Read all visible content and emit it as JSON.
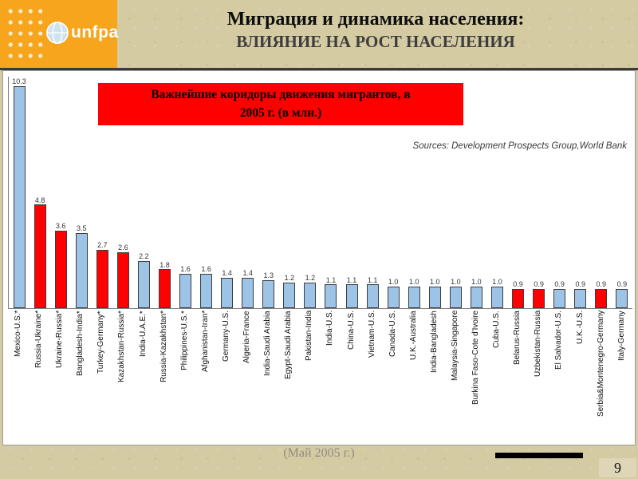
{
  "header": {
    "title_line1": "Миграция и динамика населения:",
    "title_line2": "ВЛИЯНИЕ НА РОСТ НАСЕЛЕНИЯ",
    "logo_text": "unfpa"
  },
  "chart_data": {
    "type": "bar",
    "title": "Важнейшие коридоры движения мигрантов, в 2005 г. (в млн.)",
    "title_line1": "Важнейшие коридоры движения мигрантов, в",
    "title_line2": "2005 г. (в млн.)",
    "source": "Sources: Development Prospects Group,World Bank",
    "xlabel": "",
    "ylabel": "",
    "ylim": [
      0,
      10.5
    ],
    "grid": false,
    "legend": "none",
    "colors": {
      "default": "#9dc3e6",
      "highlight": "#fe0000"
    },
    "bars": [
      {
        "label": "Mexico-U.S.*",
        "value": 10.3,
        "highlight": false
      },
      {
        "label": "Russia-Ukraine*",
        "value": 4.8,
        "highlight": true
      },
      {
        "label": "Ukraine-Russia*",
        "value": 3.6,
        "highlight": true
      },
      {
        "label": "Bangladesh-India*",
        "value": 3.5,
        "highlight": false
      },
      {
        "label": "Turkey-Germany*",
        "value": 2.7,
        "highlight": true
      },
      {
        "label": "Kazakhstan-Russia*",
        "value": 2.6,
        "highlight": true
      },
      {
        "label": "India-U.A.E.*",
        "value": 2.2,
        "highlight": false
      },
      {
        "label": "Russia-Kazakhstan*",
        "value": 1.8,
        "highlight": true
      },
      {
        "label": "Philippines-U.S.*",
        "value": 1.6,
        "highlight": false
      },
      {
        "label": "Afghanistan-Iran*",
        "value": 1.6,
        "highlight": false
      },
      {
        "label": "Germany-U.S.",
        "value": 1.4,
        "highlight": false
      },
      {
        "label": "Algeria-France",
        "value": 1.4,
        "highlight": false
      },
      {
        "label": "India-Saudi Arabia",
        "value": 1.3,
        "highlight": false
      },
      {
        "label": "Egypt-Saudi Arabia",
        "value": 1.2,
        "highlight": false
      },
      {
        "label": "Pakistan-India",
        "value": 1.2,
        "highlight": false
      },
      {
        "label": "India-U.S.",
        "value": 1.1,
        "highlight": false
      },
      {
        "label": "China-U.S.",
        "value": 1.1,
        "highlight": false
      },
      {
        "label": "Vietnam-U.S.",
        "value": 1.1,
        "highlight": false
      },
      {
        "label": "Canada-U.S.",
        "value": 1.0,
        "highlight": false
      },
      {
        "label": "U.K.-Australia",
        "value": 1.0,
        "highlight": false
      },
      {
        "label": "India-Bangladesh",
        "value": 1.0,
        "highlight": false
      },
      {
        "label": "Malaysia-Singapore",
        "value": 1.0,
        "highlight": false
      },
      {
        "label": "Burkina Faso-Cote d'Ivoire",
        "value": 1.0,
        "highlight": false
      },
      {
        "label": "Cuba-U.S.",
        "value": 1.0,
        "highlight": false
      },
      {
        "label": "Belarus-Russia",
        "value": 0.9,
        "highlight": true
      },
      {
        "label": "Uzbekistan-Russia",
        "value": 0.9,
        "highlight": true
      },
      {
        "label": "El Salvador-U.S.",
        "value": 0.9,
        "highlight": false
      },
      {
        "label": "U.K.-U.S.",
        "value": 0.9,
        "highlight": false
      },
      {
        "label": "Serbia&Montenegro-Germany",
        "value": 0.9,
        "highlight": true
      },
      {
        "label": "Italy-Germany",
        "value": 0.9,
        "highlight": false
      }
    ]
  },
  "footer": {
    "date_text": "(Май 2005 г.)",
    "page_number": "9"
  }
}
